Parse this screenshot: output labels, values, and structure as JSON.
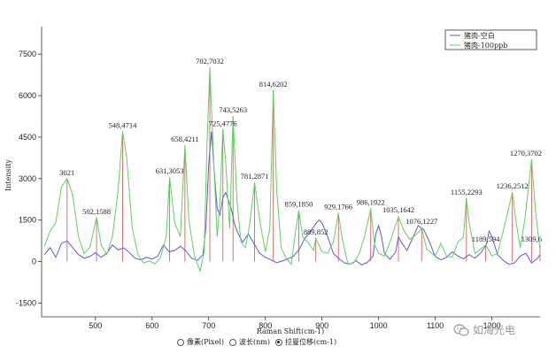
{
  "chart_data": {
    "type": "line",
    "xlabel": "Raman Shift(cm-1)",
    "ylabel": "Intensity",
    "xlim": [
      405,
      1285
    ],
    "ylim": [
      -2000,
      8500
    ],
    "xticks": [
      500,
      600,
      700,
      800,
      900,
      1000,
      1100,
      1200
    ],
    "yticks": [
      -1500,
      0,
      1500,
      3000,
      4500,
      6000,
      7500
    ],
    "grid": false,
    "legend_position": "top-right",
    "series": [
      {
        "name": "猪肉-空白",
        "color": "#5b5bd6",
        "points": [
          [
            410,
            250
          ],
          [
            420,
            500
          ],
          [
            430,
            150
          ],
          [
            440,
            650
          ],
          [
            450,
            750
          ],
          [
            460,
            500
          ],
          [
            470,
            250
          ],
          [
            480,
            120
          ],
          [
            490,
            180
          ],
          [
            500,
            320
          ],
          [
            510,
            150
          ],
          [
            520,
            300
          ],
          [
            530,
            600
          ],
          [
            540,
            420
          ],
          [
            550,
            500
          ],
          [
            560,
            320
          ],
          [
            570,
            120
          ],
          [
            580,
            60
          ],
          [
            590,
            150
          ],
          [
            600,
            90
          ],
          [
            610,
            200
          ],
          [
            620,
            600
          ],
          [
            630,
            350
          ],
          [
            640,
            400
          ],
          [
            650,
            550
          ],
          [
            660,
            380
          ],
          [
            670,
            120
          ],
          [
            680,
            40
          ],
          [
            690,
            250
          ],
          [
            695,
            1200
          ],
          [
            700,
            3500
          ],
          [
            705,
            4700
          ],
          [
            710,
            3200
          ],
          [
            715,
            1900
          ],
          [
            720,
            1700
          ],
          [
            725,
            2300
          ],
          [
            730,
            2500
          ],
          [
            735,
            2200
          ],
          [
            740,
            1900
          ],
          [
            745,
            1400
          ],
          [
            750,
            1100
          ],
          [
            760,
            700
          ],
          [
            770,
            1000
          ],
          [
            780,
            650
          ],
          [
            790,
            300
          ],
          [
            800,
            150
          ],
          [
            810,
            60
          ],
          [
            820,
            -40
          ],
          [
            830,
            20
          ],
          [
            840,
            100
          ],
          [
            850,
            200
          ],
          [
            860,
            450
          ],
          [
            870,
            850
          ],
          [
            880,
            1100
          ],
          [
            890,
            1400
          ],
          [
            895,
            1500
          ],
          [
            900,
            1400
          ],
          [
            910,
            900
          ],
          [
            920,
            300
          ],
          [
            930,
            100
          ],
          [
            940,
            -50
          ],
          [
            950,
            -100
          ],
          [
            960,
            30
          ],
          [
            970,
            -120
          ],
          [
            980,
            -30
          ],
          [
            990,
            200
          ],
          [
            995,
            1000
          ],
          [
            1000,
            1300
          ],
          [
            1005,
            900
          ],
          [
            1010,
            300
          ],
          [
            1020,
            80
          ],
          [
            1030,
            350
          ],
          [
            1035,
            900
          ],
          [
            1040,
            700
          ],
          [
            1050,
            400
          ],
          [
            1060,
            850
          ],
          [
            1070,
            1300
          ],
          [
            1080,
            1150
          ],
          [
            1090,
            700
          ],
          [
            1100,
            180
          ],
          [
            1110,
            60
          ],
          [
            1120,
            150
          ],
          [
            1130,
            350
          ],
          [
            1140,
            200
          ],
          [
            1150,
            100
          ],
          [
            1160,
            250
          ],
          [
            1170,
            120
          ],
          [
            1180,
            300
          ],
          [
            1190,
            600
          ],
          [
            1195,
            1100
          ],
          [
            1200,
            900
          ],
          [
            1210,
            250
          ],
          [
            1220,
            40
          ],
          [
            1230,
            -100
          ],
          [
            1240,
            -50
          ],
          [
            1250,
            200
          ],
          [
            1260,
            300
          ],
          [
            1270,
            -50
          ],
          [
            1280,
            100
          ],
          [
            1285,
            250
          ]
        ]
      },
      {
        "name": "猪肉-100ppb",
        "color": "#5ed35e",
        "points": [
          [
            410,
            550
          ],
          [
            420,
            1100
          ],
          [
            430,
            1400
          ],
          [
            440,
            2700
          ],
          [
            450,
            3000
          ],
          [
            460,
            2400
          ],
          [
            470,
            900
          ],
          [
            480,
            300
          ],
          [
            490,
            500
          ],
          [
            502,
            1600
          ],
          [
            510,
            600
          ],
          [
            520,
            250
          ],
          [
            530,
            900
          ],
          [
            540,
            2600
          ],
          [
            548,
            4700
          ],
          [
            555,
            3800
          ],
          [
            565,
            1200
          ],
          [
            575,
            250
          ],
          [
            585,
            -50
          ],
          [
            595,
            20
          ],
          [
            605,
            -80
          ],
          [
            615,
            150
          ],
          [
            625,
            900
          ],
          [
            631,
            3050
          ],
          [
            640,
            1400
          ],
          [
            650,
            900
          ],
          [
            658,
            4200
          ],
          [
            665,
            1500
          ],
          [
            675,
            200
          ],
          [
            685,
            -350
          ],
          [
            692,
            350
          ],
          [
            697,
            4200
          ],
          [
            702,
            7000
          ],
          [
            708,
            4000
          ],
          [
            715,
            900
          ],
          [
            720,
            2200
          ],
          [
            725,
            4800
          ],
          [
            730,
            3600
          ],
          [
            737,
            1200
          ],
          [
            743,
            5250
          ],
          [
            750,
            2200
          ],
          [
            757,
            700
          ],
          [
            765,
            500
          ],
          [
            772,
            1300
          ],
          [
            781,
            2850
          ],
          [
            790,
            1500
          ],
          [
            800,
            350
          ],
          [
            808,
            1200
          ],
          [
            814,
            6200
          ],
          [
            820,
            2600
          ],
          [
            828,
            500
          ],
          [
            836,
            150
          ],
          [
            846,
            -100
          ],
          [
            852,
            900
          ],
          [
            859,
            1850
          ],
          [
            866,
            900
          ],
          [
            875,
            700
          ],
          [
            885,
            400
          ],
          [
            889,
            850
          ],
          [
            900,
            350
          ],
          [
            910,
            300
          ],
          [
            920,
            700
          ],
          [
            929,
            1750
          ],
          [
            936,
            800
          ],
          [
            946,
            -100
          ],
          [
            956,
            -50
          ],
          [
            966,
            300
          ],
          [
            975,
            900
          ],
          [
            986,
            1900
          ],
          [
            993,
            600
          ],
          [
            1000,
            300
          ],
          [
            1010,
            200
          ],
          [
            1020,
            700
          ],
          [
            1028,
            1200
          ],
          [
            1035,
            1600
          ],
          [
            1045,
            1100
          ],
          [
            1055,
            800
          ],
          [
            1065,
            950
          ],
          [
            1076,
            1200
          ],
          [
            1085,
            450
          ],
          [
            1100,
            200
          ],
          [
            1110,
            650
          ],
          [
            1120,
            200
          ],
          [
            1130,
            150
          ],
          [
            1140,
            700
          ],
          [
            1150,
            900
          ],
          [
            1155,
            2300
          ],
          [
            1160,
            1400
          ],
          [
            1170,
            300
          ],
          [
            1180,
            450
          ],
          [
            1189,
            600
          ],
          [
            1200,
            200
          ],
          [
            1210,
            300
          ],
          [
            1220,
            1100
          ],
          [
            1228,
            1800
          ],
          [
            1236,
            2500
          ],
          [
            1243,
            1400
          ],
          [
            1250,
            500
          ],
          [
            1258,
            1500
          ],
          [
            1264,
            2600
          ],
          [
            1270,
            3700
          ],
          [
            1277,
            1800
          ],
          [
            1285,
            400
          ]
        ]
      }
    ],
    "peak_annotations": [
      {
        "label": "3021",
        "x": 450,
        "y": 3000
      },
      {
        "label": "502,1588",
        "x": 502,
        "y": 1588
      },
      {
        "label": "548,4714",
        "x": 548,
        "y": 4714
      },
      {
        "label": "631,3053",
        "x": 631,
        "y": 3053
      },
      {
        "label": "658,4211",
        "x": 658,
        "y": 4211
      },
      {
        "label": "702,7032",
        "x": 702,
        "y": 7032
      },
      {
        "label": "725,4776",
        "x": 725,
        "y": 4776
      },
      {
        "label": "743,5263",
        "x": 743,
        "y": 5263
      },
      {
        "label": "781,2871",
        "x": 781,
        "y": 2871
      },
      {
        "label": "814,6202",
        "x": 814,
        "y": 6202
      },
      {
        "label": "859,1850",
        "x": 859,
        "y": 1850
      },
      {
        "label": "889,852",
        "x": 889,
        "y": 852
      },
      {
        "label": "929,1766",
        "x": 929,
        "y": 1766
      },
      {
        "label": "986,1922",
        "x": 986,
        "y": 1922
      },
      {
        "label": "1035,1642",
        "x": 1035,
        "y": 1642
      },
      {
        "label": "1076,1227",
        "x": 1076,
        "y": 1227
      },
      {
        "label": "1155,2293",
        "x": 1155,
        "y": 2293
      },
      {
        "label": "1189,594",
        "x": 1189,
        "y": 594
      },
      {
        "label": "1236,2512",
        "x": 1236,
        "y": 2512
      },
      {
        "label": "1270,3702",
        "x": 1270,
        "y": 3702
      },
      {
        "label": "1309,6",
        "x": 1285,
        "y": 600
      }
    ],
    "annotation_color": "#e06060"
  },
  "mode_selector": {
    "options": [
      {
        "label": "像素(Pixel)",
        "checked": false
      },
      {
        "label": "波长(nm)",
        "checked": false
      },
      {
        "label": "拉曼位移(cm-1)",
        "checked": true
      }
    ]
  },
  "watermark": {
    "text": "如海光电",
    "icon": "wechat-icon"
  }
}
